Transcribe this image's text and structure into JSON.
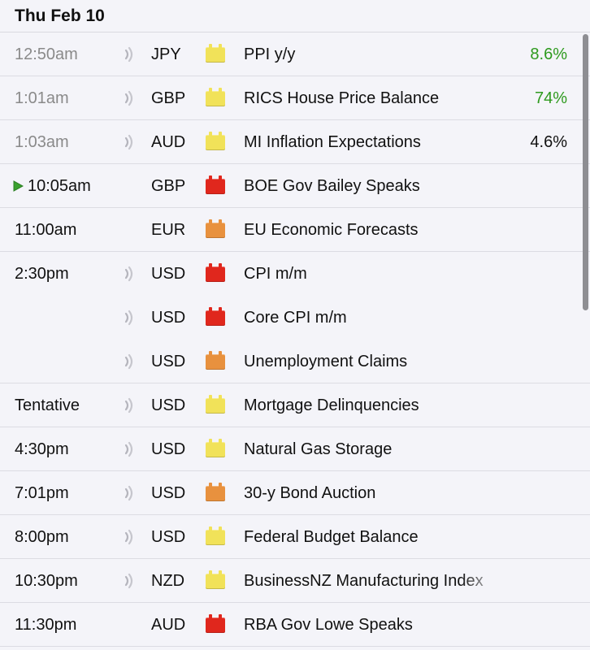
{
  "header": {
    "date": "Thu Feb 10"
  },
  "colors": {
    "low": "#f1e259",
    "medium": "#e8913e",
    "high": "#e0271d",
    "positive": "#2e9a1e",
    "neutral": "#111111",
    "past_time": "#8a8a8a"
  },
  "events": [
    {
      "time": "12:50am",
      "past": true,
      "playing": false,
      "sound": true,
      "currency": "JPY",
      "impact": "low",
      "event": "PPI y/y",
      "actual": "8.6%",
      "actual_color": "positive",
      "border": true
    },
    {
      "time": "1:01am",
      "past": true,
      "playing": false,
      "sound": true,
      "currency": "GBP",
      "impact": "low",
      "event": "RICS House Price Balance",
      "actual": "74%",
      "actual_color": "positive",
      "border": true
    },
    {
      "time": "1:03am",
      "past": true,
      "playing": false,
      "sound": true,
      "currency": "AUD",
      "impact": "low",
      "event": "MI Inflation Expectations",
      "actual": "4.6%",
      "actual_color": "neutral",
      "border": true
    },
    {
      "time": "10:05am",
      "past": false,
      "playing": true,
      "sound": false,
      "currency": "GBP",
      "impact": "high",
      "event": "BOE Gov Bailey Speaks",
      "actual": "",
      "actual_color": "neutral",
      "border": true
    },
    {
      "time": "11:00am",
      "past": false,
      "playing": false,
      "sound": false,
      "currency": "EUR",
      "impact": "medium",
      "event": "EU Economic Forecasts",
      "actual": "",
      "actual_color": "neutral",
      "border": true
    },
    {
      "time": "2:30pm",
      "past": false,
      "playing": false,
      "sound": true,
      "currency": "USD",
      "impact": "high",
      "event": "CPI m/m",
      "actual": "",
      "actual_color": "neutral",
      "border": false
    },
    {
      "time": "",
      "past": false,
      "playing": false,
      "sound": true,
      "currency": "USD",
      "impact": "high",
      "event": "Core CPI m/m",
      "actual": "",
      "actual_color": "neutral",
      "border": false
    },
    {
      "time": "",
      "past": false,
      "playing": false,
      "sound": true,
      "currency": "USD",
      "impact": "medium",
      "event": "Unemployment Claims",
      "actual": "",
      "actual_color": "neutral",
      "border": true
    },
    {
      "time": "Tentative",
      "past": false,
      "playing": false,
      "sound": true,
      "currency": "USD",
      "impact": "low",
      "event": "Mortgage Delinquencies",
      "actual": "",
      "actual_color": "neutral",
      "border": true
    },
    {
      "time": "4:30pm",
      "past": false,
      "playing": false,
      "sound": true,
      "currency": "USD",
      "impact": "low",
      "event": "Natural Gas Storage",
      "actual": "",
      "actual_color": "neutral",
      "border": true
    },
    {
      "time": "7:01pm",
      "past": false,
      "playing": false,
      "sound": true,
      "currency": "USD",
      "impact": "medium",
      "event": "30-y Bond Auction",
      "actual": "",
      "actual_color": "neutral",
      "border": true
    },
    {
      "time": "8:00pm",
      "past": false,
      "playing": false,
      "sound": true,
      "currency": "USD",
      "impact": "low",
      "event": "Federal Budget Balance",
      "actual": "",
      "actual_color": "neutral",
      "border": true
    },
    {
      "time": "10:30pm",
      "past": false,
      "playing": false,
      "sound": true,
      "currency": "NZD",
      "impact": "low",
      "event": "BusinessNZ Manufacturing Index",
      "actual": "",
      "actual_color": "neutral",
      "border": true
    },
    {
      "time": "11:30pm",
      "past": false,
      "playing": false,
      "sound": false,
      "currency": "AUD",
      "impact": "high",
      "event": "RBA Gov Lowe Speaks",
      "actual": "",
      "actual_color": "neutral",
      "border": true
    }
  ]
}
